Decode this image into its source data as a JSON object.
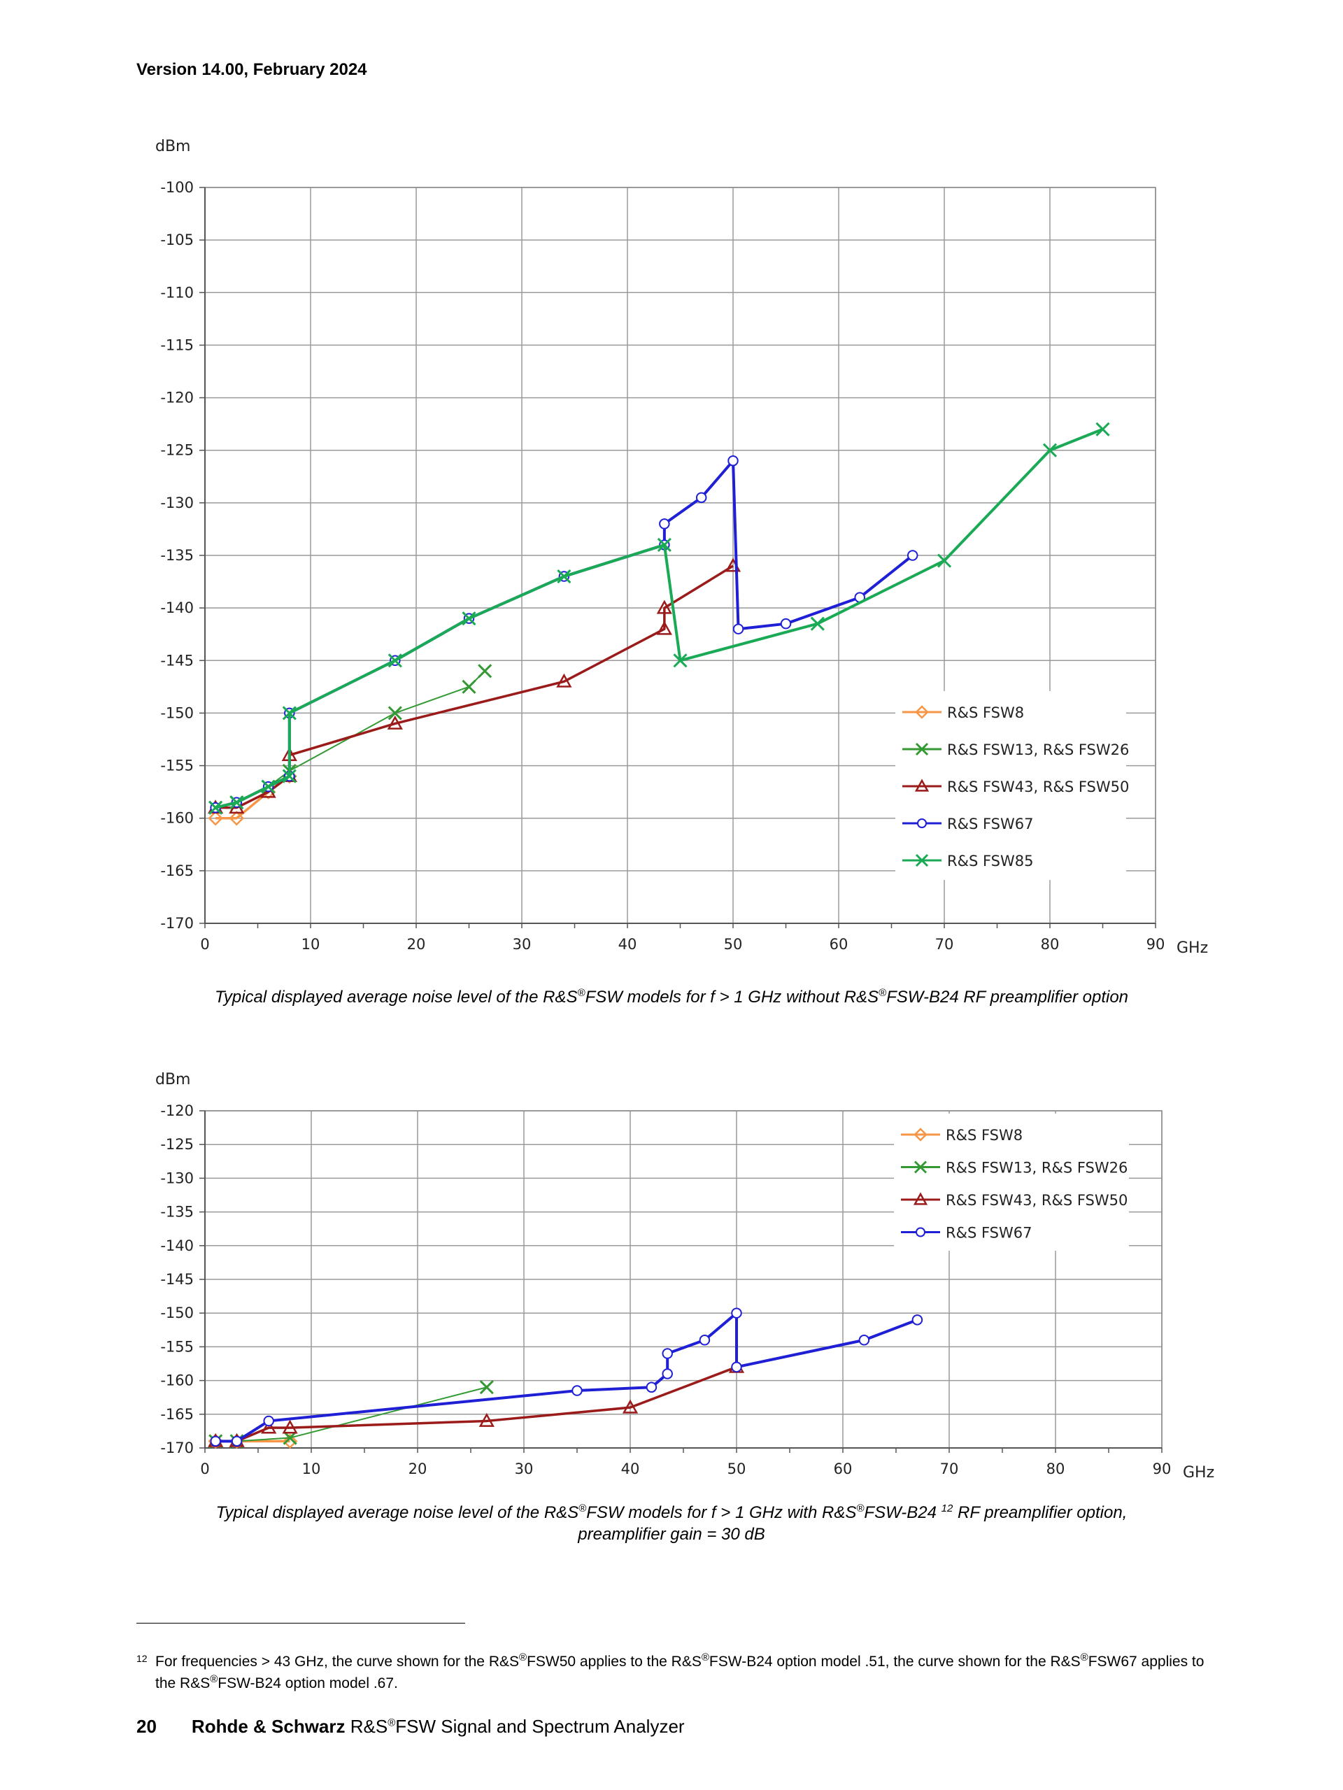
{
  "header": {
    "version": "Version 14.00, February 2024"
  },
  "chart_data": [
    {
      "type": "line",
      "ylabel": "dBm",
      "xlabel": "GHz",
      "xlim": [
        0,
        90
      ],
      "ylim": [
        -170,
        -100
      ],
      "xticks": [
        0,
        10,
        20,
        30,
        40,
        50,
        60,
        70,
        80,
        90
      ],
      "yticks": [
        -100,
        -105,
        -110,
        -115,
        -120,
        -125,
        -130,
        -135,
        -140,
        -145,
        -150,
        -155,
        -160,
        -165,
        -170
      ],
      "grid": true,
      "legend_position": "right",
      "series": [
        {
          "name": "R&S FSW8",
          "color": "#f79646",
          "marker": "diamond",
          "x": [
            1,
            3,
            6,
            8
          ],
          "y": [
            -160,
            -160,
            -157.5,
            -156
          ]
        },
        {
          "name": "R&S FSW13, R&S FSW26",
          "color": "#339933",
          "marker": "x",
          "x": [
            1,
            3,
            6,
            8,
            18,
            25,
            26.5
          ],
          "y": [
            -159,
            -158.5,
            -157,
            -155.5,
            -150,
            -147.5,
            -146
          ]
        },
        {
          "name": "R&S FSW43, R&S FSW50",
          "color": "#9b1b1b",
          "marker": "triangle",
          "x": [
            1,
            3,
            6,
            8,
            8,
            18,
            34,
            43.5,
            43.5,
            50
          ],
          "y": [
            -159,
            -159,
            -157.5,
            -156,
            -154,
            -151,
            -147,
            -142,
            -140,
            -136
          ]
        },
        {
          "name": "R&S FSW67",
          "color": "#1f1fd6",
          "marker": "circle",
          "x": [
            1,
            3,
            6,
            8,
            8,
            18,
            25,
            34,
            43.5,
            43.5,
            47,
            50,
            50.5,
            55,
            62,
            67
          ],
          "y": [
            -159,
            -158.5,
            -157,
            -156,
            -150,
            -145,
            -141,
            -137,
            -134,
            -132,
            -129.5,
            -126,
            -142,
            -141.5,
            -139,
            -135
          ]
        },
        {
          "name": "R&S FSW85",
          "color": "#1aaa55",
          "marker": "x",
          "x": [
            1,
            3,
            6,
            8,
            8,
            18,
            25,
            34,
            43.5,
            45,
            58,
            70,
            80,
            85
          ],
          "y": [
            -159,
            -158.5,
            -157,
            -156,
            -150,
            -145,
            -141,
            -137,
            -134,
            -145,
            -141.5,
            -135.5,
            -125,
            -123
          ]
        }
      ]
    },
    {
      "type": "line",
      "ylabel": "dBm",
      "xlabel": "GHz",
      "xlim": [
        0,
        90
      ],
      "ylim": [
        -170,
        -120
      ],
      "xticks": [
        0,
        10,
        20,
        30,
        40,
        50,
        60,
        70,
        80,
        90
      ],
      "yticks": [
        -120,
        -125,
        -130,
        -135,
        -140,
        -145,
        -150,
        -155,
        -160,
        -165,
        -170
      ],
      "grid": true,
      "legend_position": "top-right",
      "series": [
        {
          "name": "R&S FSW8",
          "color": "#f79646",
          "marker": "diamond",
          "x": [
            1,
            3,
            8
          ],
          "y": [
            -169,
            -169,
            -169
          ]
        },
        {
          "name": "R&S FSW13, R&S FSW26",
          "color": "#339933",
          "marker": "x",
          "x": [
            1,
            3,
            8,
            26.5
          ],
          "y": [
            -169,
            -169,
            -168.5,
            -161
          ]
        },
        {
          "name": "R&S FSW43, R&S FSW50",
          "color": "#9b1b1b",
          "marker": "triangle",
          "x": [
            1,
            3,
            6,
            8,
            26.5,
            40,
            50
          ],
          "y": [
            -169,
            -169,
            -167,
            -167,
            -166,
            -164,
            -158
          ]
        },
        {
          "name": "R&S FSW67",
          "color": "#1f1fd6",
          "marker": "circle",
          "x": [
            1,
            3,
            6,
            35,
            42,
            43.5,
            43.5,
            47,
            50,
            50,
            62,
            67
          ],
          "y": [
            -169,
            -169,
            -166,
            -161.5,
            -161,
            -159,
            -156,
            -154,
            -150,
            -158,
            -154,
            -151
          ]
        }
      ]
    }
  ],
  "captions": {
    "chart1": [
      "Typical displayed average noise level of the R&S",
      "®",
      "FSW models for f > 1 GHz without R&S",
      "®",
      "FSW-B24 RF preamplifier option"
    ],
    "chart2_line1": [
      "Typical displayed average noise level of the R&S",
      "®",
      "FSW models for f > 1 GHz with R&S",
      "®",
      "FSW-B24 ",
      "12",
      " RF preamplifier option,"
    ],
    "chart2_line2": "preamplifier gain = 30 dB"
  },
  "footnote": {
    "mark": "12",
    "parts": [
      "For frequencies > 43 GHz, the curve shown for the R&S",
      "®",
      "FSW50 applies to the R&S",
      "®",
      "FSW-B24 option model .51, the curve shown for the R&S",
      "®",
      "FSW67 applies to the R&S",
      "®",
      "FSW-B24 option model .67."
    ]
  },
  "footer": {
    "page_number": "20",
    "brand": "Rohde & Schwarz",
    "product_prefix": " R&S",
    "registered": "®",
    "product": "FSW Signal and Spectrum Analyzer"
  }
}
